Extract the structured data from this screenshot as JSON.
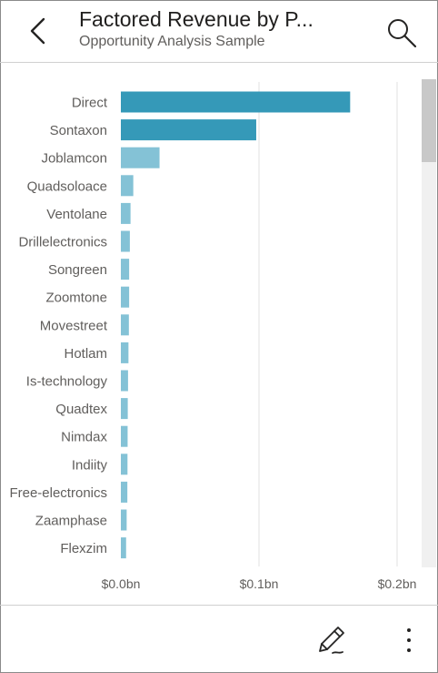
{
  "header": {
    "title": "Factored Revenue by P...",
    "subtitle": "Opportunity Analysis Sample",
    "back_icon": "chevron-left-icon",
    "search_icon": "search-icon"
  },
  "footer": {
    "edit_icon": "pencil-icon",
    "more_icon": "more-vertical-icon"
  },
  "colors": {
    "bar_highlight": "#3599b8",
    "bar_light": "#84c2d6",
    "gridline": "#e1e1e1",
    "label": "#605e5c",
    "scrollbar_track": "#f0f0f0",
    "scrollbar_thumb": "#c8c8c8"
  },
  "chart_data": {
    "type": "bar",
    "orientation": "horizontal",
    "categories": [
      "Direct",
      "Sontaxon",
      "Joblamcon",
      "Quadsoloace",
      "Ventolane",
      "Drillelectronics",
      "Songreen",
      "Zoomtone",
      "Movestreet",
      "Hotlam",
      "Is-technology",
      "Quadtex",
      "Nimdax",
      "Indiity",
      "Free-electronics",
      "Zaamphase",
      "Flexzim"
    ],
    "values": [
      0.166,
      0.098,
      0.028,
      0.009,
      0.007,
      0.0065,
      0.006,
      0.006,
      0.0058,
      0.0055,
      0.0052,
      0.005,
      0.0049,
      0.0048,
      0.0047,
      0.0042,
      0.0038
    ],
    "highlighted": [
      true,
      true,
      false,
      false,
      false,
      false,
      false,
      false,
      false,
      false,
      false,
      false,
      false,
      false,
      false,
      false,
      false
    ],
    "xlim": [
      0,
      0.2
    ],
    "x_ticks": [
      0,
      0.1,
      0.2
    ],
    "x_tick_labels": [
      "$0.0bn",
      "$0.1bn",
      "$0.2bn"
    ],
    "grid": true,
    "title": "",
    "xlabel": "",
    "ylabel": ""
  }
}
